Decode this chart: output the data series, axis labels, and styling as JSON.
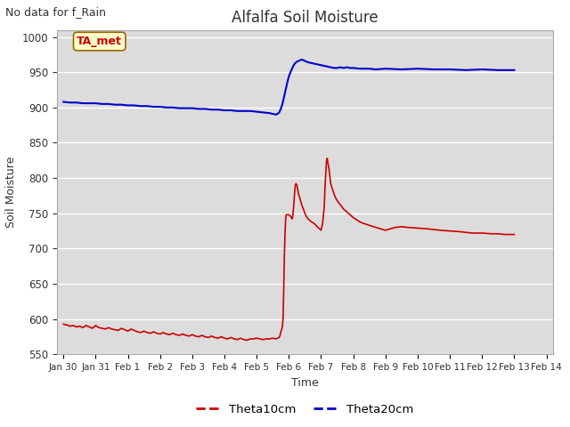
{
  "title": "Alfalfa Soil Moisture",
  "top_left_text": "No data for f_Rain",
  "xlabel": "Time",
  "ylabel": "Soil Moisture",
  "ylim": [
    550,
    1010
  ],
  "yticks": [
    550,
    600,
    650,
    700,
    750,
    800,
    850,
    900,
    950,
    1000
  ],
  "outer_bg_color": "#ffffff",
  "plot_bg_color": "#dcdcdc",
  "grid_color": "#ffffff",
  "legend_entries": [
    "Theta10cm",
    "Theta20cm"
  ],
  "legend_colors": [
    "#cc0000",
    "#0000cc"
  ],
  "annotation_box": {
    "text": "TA_met",
    "facecolor": "#ffffcc",
    "edgecolor": "#996600",
    "textcolor": "#cc0000"
  },
  "theta10cm": {
    "color": "#cc0000",
    "data": [
      [
        0.0,
        593
      ],
      [
        0.05,
        592
      ],
      [
        0.1,
        592
      ],
      [
        0.15,
        591
      ],
      [
        0.2,
        590
      ],
      [
        0.3,
        591
      ],
      [
        0.4,
        589
      ],
      [
        0.5,
        590
      ],
      [
        0.6,
        588
      ],
      [
        0.7,
        591
      ],
      [
        0.8,
        589
      ],
      [
        0.9,
        587
      ],
      [
        1.0,
        591
      ],
      [
        1.1,
        588
      ],
      [
        1.2,
        587
      ],
      [
        1.3,
        586
      ],
      [
        1.4,
        588
      ],
      [
        1.5,
        586
      ],
      [
        1.6,
        585
      ],
      [
        1.7,
        584
      ],
      [
        1.8,
        587
      ],
      [
        1.9,
        585
      ],
      [
        2.0,
        583
      ],
      [
        2.1,
        586
      ],
      [
        2.2,
        584
      ],
      [
        2.3,
        582
      ],
      [
        2.4,
        581
      ],
      [
        2.5,
        583
      ],
      [
        2.6,
        581
      ],
      [
        2.7,
        580
      ],
      [
        2.8,
        582
      ],
      [
        2.9,
        580
      ],
      [
        3.0,
        579
      ],
      [
        3.1,
        581
      ],
      [
        3.2,
        579
      ],
      [
        3.3,
        578
      ],
      [
        3.4,
        580
      ],
      [
        3.5,
        578
      ],
      [
        3.6,
        577
      ],
      [
        3.7,
        579
      ],
      [
        3.8,
        577
      ],
      [
        3.9,
        576
      ],
      [
        4.0,
        578
      ],
      [
        4.1,
        576
      ],
      [
        4.2,
        575
      ],
      [
        4.3,
        577
      ],
      [
        4.4,
        575
      ],
      [
        4.5,
        574
      ],
      [
        4.6,
        576
      ],
      [
        4.7,
        574
      ],
      [
        4.8,
        573
      ],
      [
        4.9,
        575
      ],
      [
        5.0,
        573
      ],
      [
        5.1,
        572
      ],
      [
        5.2,
        574
      ],
      [
        5.3,
        572
      ],
      [
        5.4,
        571
      ],
      [
        5.5,
        573
      ],
      [
        5.6,
        571
      ],
      [
        5.7,
        570
      ],
      [
        5.8,
        572
      ],
      [
        5.9,
        572
      ],
      [
        6.0,
        573
      ],
      [
        6.1,
        572
      ],
      [
        6.2,
        571
      ],
      [
        6.3,
        572
      ],
      [
        6.4,
        572
      ],
      [
        6.5,
        573
      ],
      [
        6.6,
        572
      ],
      [
        6.65,
        573
      ],
      [
        6.7,
        574
      ],
      [
        6.72,
        576
      ],
      [
        6.74,
        580
      ],
      [
        6.76,
        583
      ],
      [
        6.78,
        586
      ],
      [
        6.8,
        590
      ],
      [
        6.82,
        600
      ],
      [
        6.84,
        640
      ],
      [
        6.86,
        690
      ],
      [
        6.88,
        720
      ],
      [
        6.9,
        742
      ],
      [
        6.92,
        748
      ],
      [
        6.95,
        748
      ],
      [
        6.97,
        748
      ],
      [
        7.0,
        748
      ],
      [
        7.02,
        747
      ],
      [
        7.05,
        746
      ],
      [
        7.08,
        744
      ],
      [
        7.1,
        742
      ],
      [
        7.12,
        745
      ],
      [
        7.15,
        760
      ],
      [
        7.18,
        780
      ],
      [
        7.2,
        790
      ],
      [
        7.22,
        792
      ],
      [
        7.25,
        790
      ],
      [
        7.27,
        785
      ],
      [
        7.3,
        778
      ],
      [
        7.35,
        770
      ],
      [
        7.4,
        762
      ],
      [
        7.45,
        756
      ],
      [
        7.5,
        750
      ],
      [
        7.55,
        745
      ],
      [
        7.6,
        742
      ],
      [
        7.7,
        738
      ],
      [
        7.8,
        735
      ],
      [
        7.9,
        730
      ],
      [
        8.0,
        726
      ],
      [
        8.05,
        736
      ],
      [
        8.1,
        760
      ],
      [
        8.12,
        785
      ],
      [
        8.15,
        808
      ],
      [
        8.17,
        825
      ],
      [
        8.19,
        828
      ],
      [
        8.2,
        825
      ],
      [
        8.22,
        820
      ],
      [
        8.25,
        812
      ],
      [
        8.28,
        800
      ],
      [
        8.3,
        792
      ],
      [
        8.35,
        785
      ],
      [
        8.4,
        778
      ],
      [
        8.45,
        772
      ],
      [
        8.5,
        768
      ],
      [
        8.6,
        762
      ],
      [
        8.7,
        756
      ],
      [
        8.8,
        752
      ],
      [
        8.9,
        748
      ],
      [
        9.0,
        744
      ],
      [
        9.1,
        741
      ],
      [
        9.2,
        738
      ],
      [
        9.3,
        736
      ],
      [
        9.5,
        733
      ],
      [
        9.7,
        730
      ],
      [
        10.0,
        726
      ],
      [
        10.3,
        730
      ],
      [
        10.5,
        731
      ],
      [
        10.7,
        730
      ],
      [
        11.0,
        729
      ],
      [
        11.3,
        728
      ],
      [
        11.5,
        727
      ],
      [
        11.7,
        726
      ],
      [
        12.0,
        725
      ],
      [
        12.3,
        724
      ],
      [
        12.5,
        723
      ],
      [
        12.7,
        722
      ],
      [
        13.0,
        722
      ],
      [
        13.3,
        721
      ],
      [
        13.5,
        721
      ],
      [
        13.7,
        720
      ],
      [
        14.0,
        720
      ]
    ]
  },
  "theta20cm": {
    "color": "#0000cc",
    "data": [
      [
        0.0,
        908
      ],
      [
        0.2,
        907
      ],
      [
        0.4,
        907
      ],
      [
        0.6,
        906
      ],
      [
        0.8,
        906
      ],
      [
        1.0,
        906
      ],
      [
        1.2,
        905
      ],
      [
        1.4,
        905
      ],
      [
        1.6,
        904
      ],
      [
        1.8,
        904
      ],
      [
        2.0,
        903
      ],
      [
        2.2,
        903
      ],
      [
        2.4,
        902
      ],
      [
        2.6,
        902
      ],
      [
        2.8,
        901
      ],
      [
        3.0,
        901
      ],
      [
        3.2,
        900
      ],
      [
        3.4,
        900
      ],
      [
        3.6,
        899
      ],
      [
        3.8,
        899
      ],
      [
        4.0,
        899
      ],
      [
        4.2,
        898
      ],
      [
        4.4,
        898
      ],
      [
        4.6,
        897
      ],
      [
        4.8,
        897
      ],
      [
        5.0,
        896
      ],
      [
        5.2,
        896
      ],
      [
        5.4,
        895
      ],
      [
        5.6,
        895
      ],
      [
        5.8,
        895
      ],
      [
        6.0,
        894
      ],
      [
        6.2,
        893
      ],
      [
        6.4,
        892
      ],
      [
        6.5,
        891
      ],
      [
        6.6,
        890
      ],
      [
        6.65,
        891
      ],
      [
        6.7,
        893
      ],
      [
        6.75,
        898
      ],
      [
        6.8,
        905
      ],
      [
        6.85,
        915
      ],
      [
        6.9,
        925
      ],
      [
        6.95,
        935
      ],
      [
        7.0,
        944
      ],
      [
        7.05,
        950
      ],
      [
        7.1,
        955
      ],
      [
        7.15,
        960
      ],
      [
        7.2,
        963
      ],
      [
        7.25,
        965
      ],
      [
        7.3,
        966
      ],
      [
        7.35,
        967
      ],
      [
        7.4,
        968
      ],
      [
        7.45,
        967
      ],
      [
        7.5,
        966
      ],
      [
        7.6,
        964
      ],
      [
        7.7,
        963
      ],
      [
        7.8,
        962
      ],
      [
        7.9,
        961
      ],
      [
        8.0,
        960
      ],
      [
        8.1,
        959
      ],
      [
        8.2,
        958
      ],
      [
        8.3,
        957
      ],
      [
        8.4,
        956
      ],
      [
        8.5,
        956
      ],
      [
        8.6,
        957
      ],
      [
        8.7,
        956
      ],
      [
        8.8,
        957
      ],
      [
        8.9,
        956
      ],
      [
        9.0,
        956
      ],
      [
        9.2,
        955
      ],
      [
        9.5,
        955
      ],
      [
        9.7,
        954
      ],
      [
        10.0,
        955
      ],
      [
        10.5,
        954
      ],
      [
        11.0,
        955
      ],
      [
        11.5,
        954
      ],
      [
        12.0,
        954
      ],
      [
        12.5,
        953
      ],
      [
        13.0,
        954
      ],
      [
        13.5,
        953
      ],
      [
        14.0,
        953
      ]
    ]
  },
  "x_tick_labels": [
    "Jan 30",
    "Jan 31",
    "Feb 1",
    "Feb 2",
    "Feb 3",
    "Feb 4",
    "Feb 5",
    "Feb 6",
    "Feb 7",
    "Feb 8",
    "Feb 9",
    "Feb 10",
    "Feb 11",
    "Feb 12",
    "Feb 13",
    "Feb 14"
  ],
  "x_tick_positions": [
    0,
    1,
    2,
    3,
    4,
    5,
    6,
    7,
    8,
    9,
    10,
    11,
    12,
    13,
    14,
    15
  ]
}
